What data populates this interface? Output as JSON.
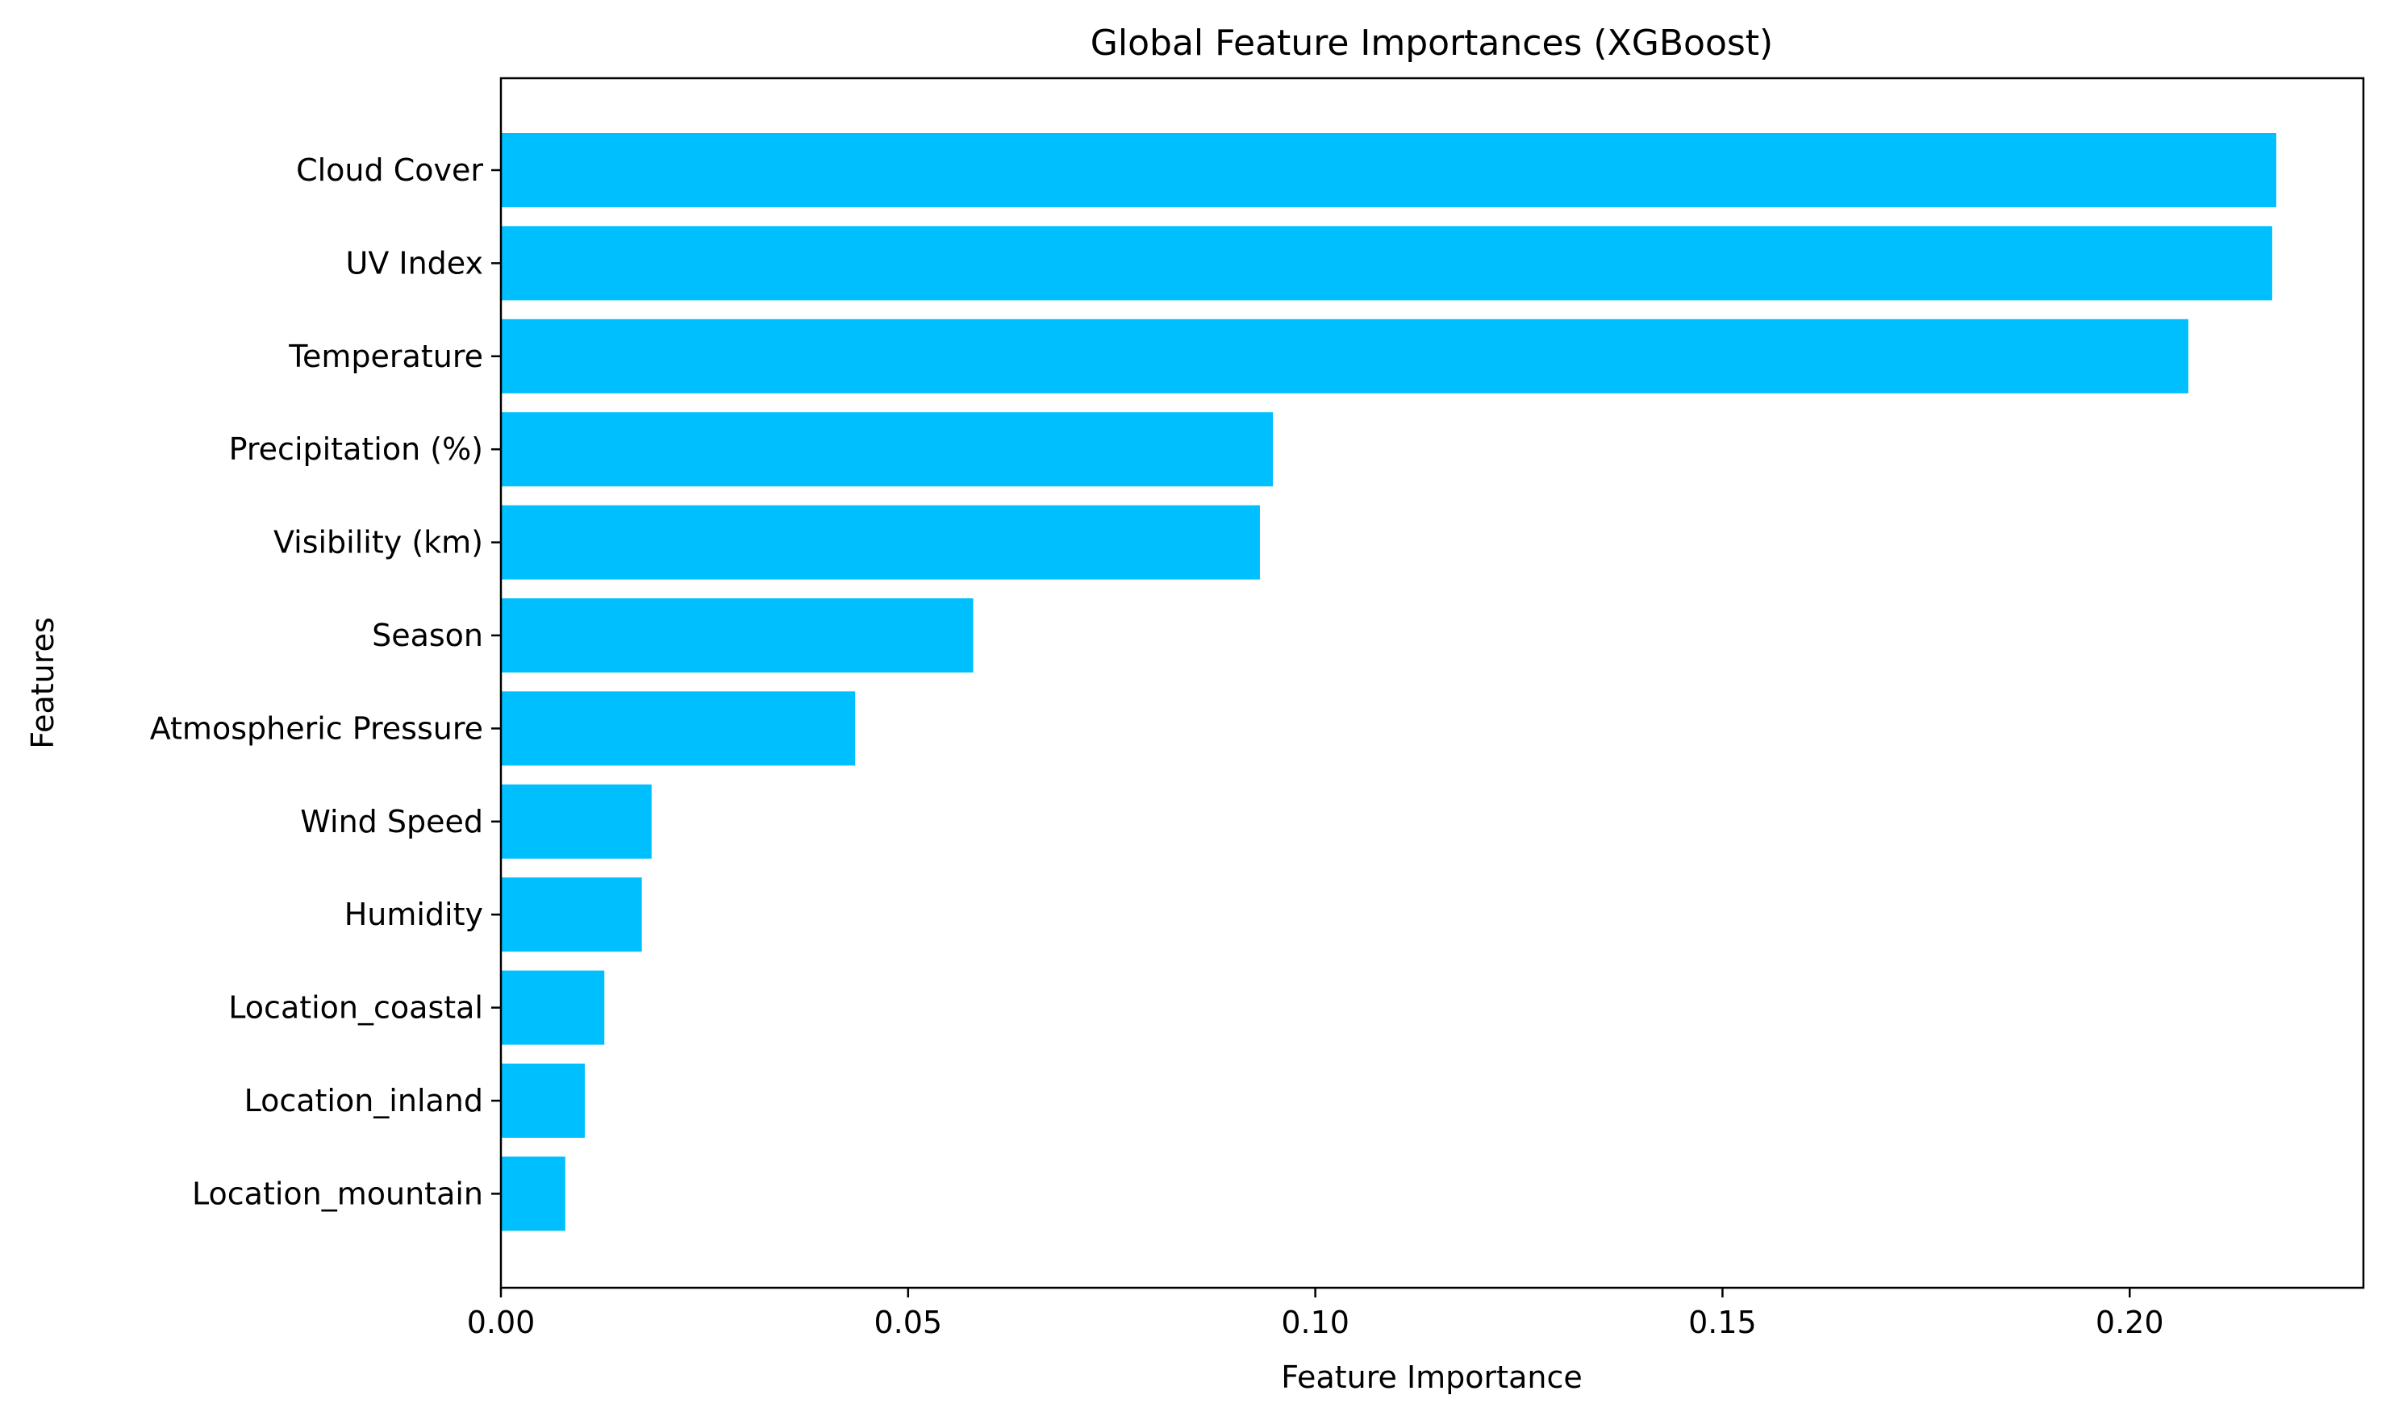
{
  "chart_data": {
    "type": "bar",
    "orientation": "horizontal",
    "title": "Global Feature Importances (XGBoost)",
    "xlabel": "Feature Importance",
    "ylabel": "Features",
    "xlim": [
      0,
      0.2287
    ],
    "xticks": [
      0.0,
      0.05,
      0.1,
      0.15,
      0.2
    ],
    "xtick_labels": [
      "0.00",
      "0.05",
      "0.10",
      "0.15",
      "0.20"
    ],
    "categories": [
      "Cloud Cover",
      "UV Index",
      "Temperature",
      "Precipitation (%)",
      "Visibility (km)",
      "Season",
      "Atmospheric Pressure",
      "Wind Speed",
      "Humidity",
      "Location_coastal",
      "Location_inland",
      "Location_mountain"
    ],
    "values": [
      0.218,
      0.2175,
      0.2072,
      0.0948,
      0.0932,
      0.058,
      0.0435,
      0.0185,
      0.0173,
      0.0127,
      0.0103,
      0.0079
    ],
    "bar_color": "#00BFFF",
    "grid": false,
    "legend": "none"
  }
}
